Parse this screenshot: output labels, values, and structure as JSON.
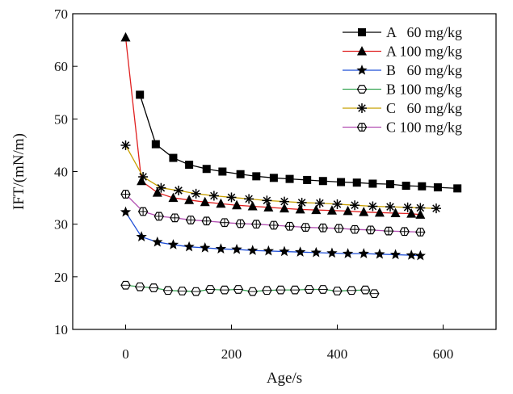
{
  "chart_data": {
    "type": "line",
    "title": "",
    "xlabel": "Age/s",
    "ylabel": "IFT/(mN/m)",
    "xlim": [
      -100,
      700
    ],
    "ylim": [
      10,
      70
    ],
    "xticks": [
      "0",
      "200",
      "400",
      "600"
    ],
    "yticks": [
      "10",
      "20",
      "30",
      "40",
      "50",
      "60",
      "70"
    ],
    "grid": false,
    "legend_position": "top-right",
    "series": [
      {
        "name": "A   60 mg/kg",
        "color": "#000000",
        "line_color": "#000000",
        "marker": "square",
        "x": [
          27,
          57,
          90,
          120,
          153,
          183,
          217,
          247,
          280,
          310,
          343,
          373,
          407,
          437,
          467,
          500,
          530,
          560,
          590,
          627
        ],
        "y": [
          54.6,
          45.2,
          42.6,
          41.3,
          40.5,
          40.0,
          39.5,
          39.1,
          38.8,
          38.6,
          38.4,
          38.2,
          38.0,
          37.9,
          37.7,
          37.6,
          37.3,
          37.2,
          37.0,
          36.8
        ]
      },
      {
        "name": "A 100 mg/kg",
        "color": "#000000",
        "line_color": "#e02020",
        "marker": "triangle",
        "x": [
          0,
          30,
          60,
          90,
          120,
          150,
          180,
          210,
          240,
          270,
          300,
          330,
          360,
          390,
          420,
          450,
          480,
          510,
          540,
          557
        ],
        "y": [
          65.5,
          38.2,
          36.0,
          35.0,
          34.6,
          34.2,
          33.9,
          33.6,
          33.4,
          33.2,
          33.0,
          32.8,
          32.7,
          32.6,
          32.5,
          32.3,
          32.2,
          32.1,
          32.0,
          31.8
        ]
      },
      {
        "name": "B   60 mg/kg",
        "color": "#000000",
        "line_color": "#1f4fd6",
        "marker": "star",
        "x": [
          0,
          30,
          60,
          90,
          120,
          150,
          180,
          210,
          240,
          270,
          300,
          330,
          360,
          390,
          420,
          450,
          480,
          510,
          540,
          557
        ],
        "y": [
          32.3,
          27.6,
          26.6,
          26.1,
          25.7,
          25.5,
          25.3,
          25.2,
          25.0,
          24.9,
          24.8,
          24.7,
          24.6,
          24.5,
          24.4,
          24.4,
          24.3,
          24.2,
          24.1,
          24.0
        ]
      },
      {
        "name": "B 100 mg/kg",
        "color": "#000000",
        "line_color": "#3aa655",
        "marker": "hexagon-open",
        "x": [
          0,
          27,
          53,
          80,
          107,
          133,
          160,
          187,
          213,
          240,
          267,
          293,
          320,
          347,
          373,
          400,
          427,
          453,
          470
        ],
        "y": [
          18.4,
          18.1,
          17.9,
          17.4,
          17.3,
          17.2,
          17.6,
          17.5,
          17.6,
          17.2,
          17.4,
          17.5,
          17.5,
          17.6,
          17.6,
          17.3,
          17.4,
          17.5,
          16.8
        ]
      },
      {
        "name": "C   60 mg/kg",
        "color": "#000000",
        "line_color": "#c8a000",
        "marker": "asterisk",
        "x": [
          0,
          33,
          67,
          100,
          133,
          167,
          200,
          233,
          267,
          300,
          333,
          367,
          400,
          433,
          467,
          500,
          533,
          557,
          587
        ],
        "y": [
          45.0,
          39.0,
          36.9,
          36.4,
          35.8,
          35.4,
          35.1,
          34.8,
          34.5,
          34.3,
          34.1,
          34.0,
          33.8,
          33.6,
          33.4,
          33.3,
          33.2,
          33.1,
          33.0
        ]
      },
      {
        "name": "C 100 mg/kg",
        "color": "#000000",
        "line_color": "#b24fb2",
        "marker": "hexagon-cross",
        "x": [
          0,
          33,
          63,
          93,
          123,
          153,
          187,
          217,
          247,
          280,
          310,
          340,
          373,
          403,
          433,
          463,
          497,
          527,
          557
        ],
        "y": [
          35.7,
          32.4,
          31.5,
          31.2,
          30.8,
          30.6,
          30.3,
          30.1,
          30.0,
          29.8,
          29.6,
          29.4,
          29.3,
          29.2,
          29.0,
          28.9,
          28.7,
          28.6,
          28.5
        ]
      }
    ]
  }
}
